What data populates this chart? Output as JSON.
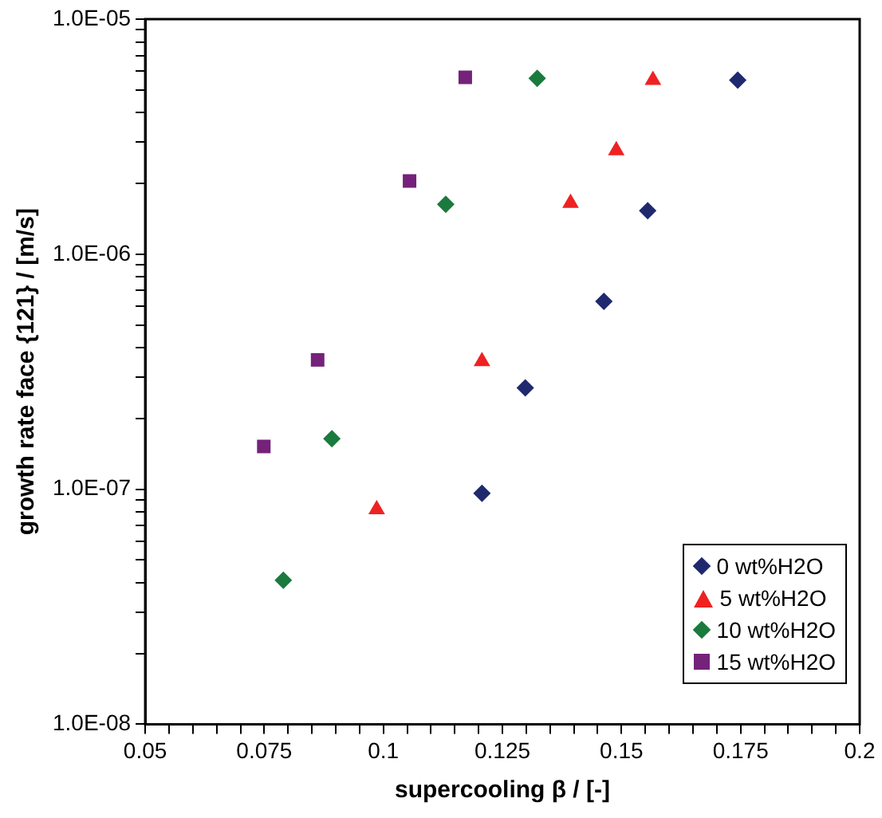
{
  "chart_data": {
    "type": "scatter",
    "xlabel": "supercooling β / [-]",
    "ylabel": "growth rate face {121} / [m/s]",
    "xlim": [
      0.05,
      0.2
    ],
    "xticks": [
      0.05,
      {
        "value": 0.055,
        "label": null
      },
      {
        "value": 0.06,
        "label": null
      },
      {
        "value": 0.065,
        "label": null
      },
      {
        "value": 0.07,
        "label": null
      },
      0.075,
      {
        "value": 0.08,
        "label": null
      },
      {
        "value": 0.085,
        "label": null
      },
      {
        "value": 0.09,
        "label": null
      },
      {
        "value": 0.095,
        "label": null
      },
      0.1,
      {
        "value": 0.105,
        "label": null
      },
      {
        "value": 0.11,
        "label": null
      },
      {
        "value": 0.115,
        "label": null
      },
      {
        "value": 0.12,
        "label": null
      },
      0.125,
      {
        "value": 0.13,
        "label": null
      },
      {
        "value": 0.135,
        "label": null
      },
      {
        "value": 0.14,
        "label": null
      },
      {
        "value": 0.145,
        "label": null
      },
      0.15,
      {
        "value": 0.155,
        "label": null
      },
      {
        "value": 0.16,
        "label": null
      },
      {
        "value": 0.165,
        "label": null
      },
      {
        "value": 0.17,
        "label": null
      },
      0.175,
      {
        "value": 0.18,
        "label": null
      },
      {
        "value": 0.185,
        "label": null
      },
      {
        "value": 0.19,
        "label": null
      },
      {
        "value": 0.195,
        "label": null
      },
      0.2
    ],
    "ylim": [
      1e-08,
      1e-05
    ],
    "yticks": [
      {
        "value": 1e-08,
        "label": "1.0E-08"
      },
      {
        "value": 2e-08,
        "label": null
      },
      {
        "value": 3e-08,
        "label": null
      },
      {
        "value": 4e-08,
        "label": null
      },
      {
        "value": 5e-08,
        "label": null
      },
      {
        "value": 6e-08,
        "label": null
      },
      {
        "value": 7e-08,
        "label": null
      },
      {
        "value": 8e-08,
        "label": null
      },
      {
        "value": 9e-08,
        "label": null
      },
      {
        "value": 1e-07,
        "label": "1.0E-07"
      },
      {
        "value": 2e-07,
        "label": null
      },
      {
        "value": 3e-07,
        "label": null
      },
      {
        "value": 4e-07,
        "label": null
      },
      {
        "value": 5e-07,
        "label": null
      },
      {
        "value": 6e-07,
        "label": null
      },
      {
        "value": 7e-07,
        "label": null
      },
      {
        "value": 8e-07,
        "label": null
      },
      {
        "value": 9e-07,
        "label": null
      },
      {
        "value": 1e-06,
        "label": "1.0E-06"
      },
      {
        "value": 2e-06,
        "label": null
      },
      {
        "value": 3e-06,
        "label": null
      },
      {
        "value": 4e-06,
        "label": null
      },
      {
        "value": 5e-06,
        "label": null
      },
      {
        "value": 6e-06,
        "label": null
      },
      {
        "value": 7e-06,
        "label": null
      },
      {
        "value": 8e-06,
        "label": null
      },
      {
        "value": 9e-06,
        "label": null
      },
      {
        "value": 1e-05,
        "label": "1.0E-05"
      }
    ],
    "log": "y",
    "grid": false,
    "legend": "bottom right",
    "series": [
      {
        "name": "0 wt%H2O",
        "color": "#1f2a6e",
        "marker": "diamond",
        "x": [
          0.1744,
          0.1555,
          0.1463,
          0.1298,
          0.1207
        ],
        "values": [
          5.5e-06,
          1.53e-06,
          6.3e-07,
          2.7e-07,
          9.6e-08
        ]
      },
      {
        "name": "5 wt%H2O",
        "color": "#ee2222",
        "marker": "triangle",
        "x": [
          0.1566,
          0.1489,
          0.1393,
          0.1207,
          0.0986
        ],
        "values": [
          5.5e-06,
          2.76e-06,
          1.65e-06,
          3.5e-07,
          8.2e-08
        ]
      },
      {
        "name": "10 wt%H2O",
        "color": "#1b7a3e",
        "marker": "diamond",
        "x": [
          0.1323,
          0.1131,
          0.0892,
          0.079
        ],
        "values": [
          5.6e-06,
          1.63e-06,
          1.64e-07,
          4.1e-08
        ]
      },
      {
        "name": "15 wt%H2O",
        "color": "#74227a",
        "marker": "square",
        "x": [
          0.1172,
          0.1055,
          0.0862,
          0.0749
        ],
        "values": [
          5.65e-06,
          2.05e-06,
          3.55e-07,
          1.52e-07
        ]
      }
    ]
  }
}
